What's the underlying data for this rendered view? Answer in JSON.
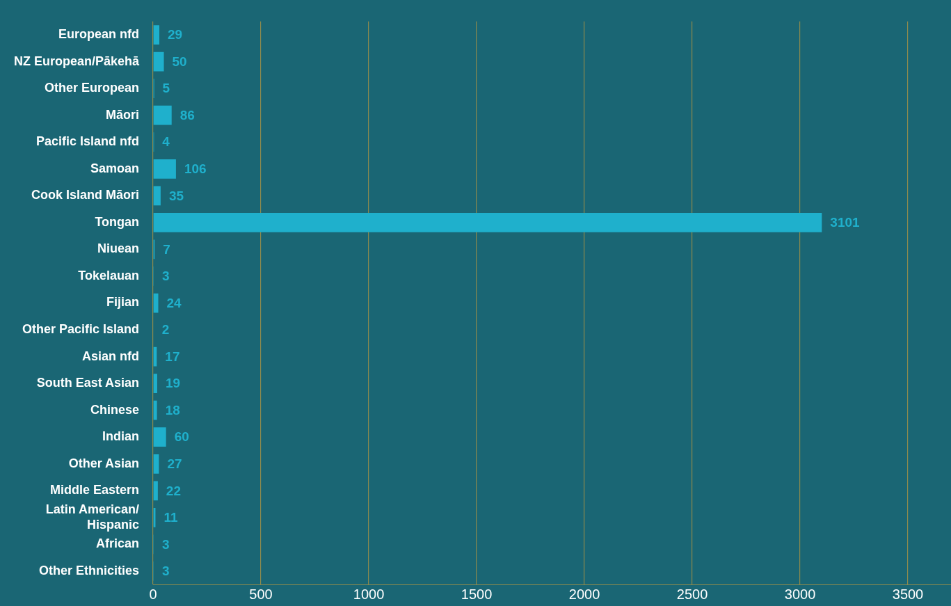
{
  "chart_data": {
    "type": "bar",
    "orientation": "horizontal",
    "categories": [
      "European nfd",
      "NZ European/Pākehā",
      "Other European",
      "Māori",
      "Pacific Island nfd",
      "Samoan",
      "Cook Island Māori",
      "Tongan",
      "Niuean",
      "Tokelauan",
      "Fijian",
      "Other Pacific Island",
      "Asian nfd",
      "South East Asian",
      "Chinese",
      "Indian",
      "Other Asian",
      "Middle Eastern",
      "Latin American/ Hispanic",
      "African",
      "Other Ethnicities"
    ],
    "values": [
      29,
      50,
      5,
      86,
      4,
      106,
      35,
      3101,
      7,
      3,
      24,
      2,
      17,
      19,
      18,
      60,
      27,
      22,
      11,
      3,
      3
    ],
    "color": "#1fb0cc",
    "xlim": [
      0,
      3700
    ],
    "xticks": [
      0,
      500,
      1000,
      1500,
      2000,
      2500,
      3000,
      3500
    ],
    "grid": "x",
    "data_labels": true,
    "legend": false
  }
}
